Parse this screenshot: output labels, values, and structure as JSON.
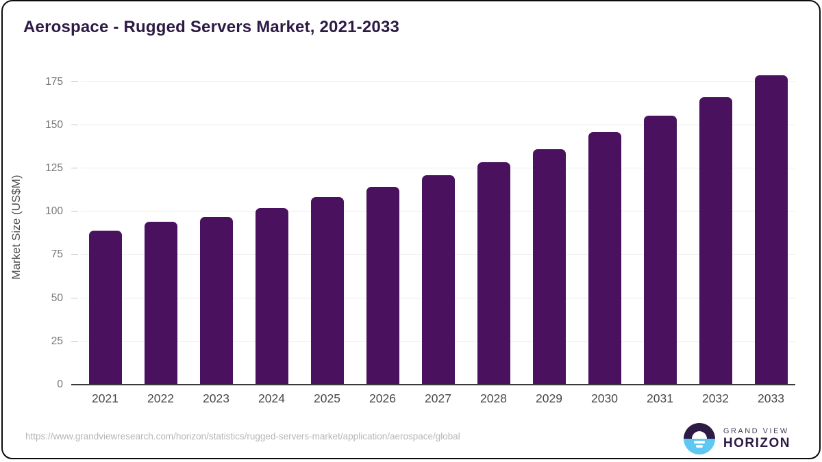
{
  "title": "Aerospace - Rugged Servers Market, 2021-2033",
  "chart_data": {
    "type": "bar",
    "title": "Aerospace - Rugged Servers Market, 2021-2033",
    "categories": [
      "2021",
      "2022",
      "2023",
      "2024",
      "2025",
      "2026",
      "2027",
      "2028",
      "2029",
      "2030",
      "2031",
      "2032",
      "2033"
    ],
    "values": [
      89,
      94,
      96.9,
      102.1,
      108.4,
      114.5,
      121.2,
      128.6,
      136.2,
      145.9,
      155.6,
      166.2,
      178.9
    ],
    "xlabel": "",
    "ylabel": "Market Size (US$M)",
    "ylim": [
      0,
      175
    ],
    "yticks": [
      0,
      25,
      50,
      75,
      100,
      125,
      150,
      175
    ],
    "grid": true,
    "legend_position": "none",
    "bar_color": "#4a115e",
    "title_color": "#2d1a45"
  },
  "footer": {
    "source_url": "https://www.grandviewresearch.com/horizon/statistics/rugged-servers-market/application/aerospace/global",
    "logo": {
      "icon": "sunrise-horizon-icon",
      "line1": "GRAND VIEW",
      "line2": "HORIZON",
      "color_dark": "#2d1a45",
      "color_blue": "#5ec8f2"
    }
  }
}
